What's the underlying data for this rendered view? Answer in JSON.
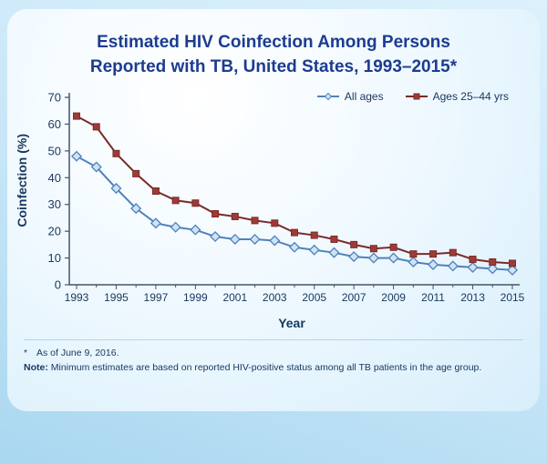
{
  "slide": {
    "title_line1": "Estimated HIV Coinfection Among Persons",
    "title_line2": "Reported with TB, United States, 1993–2015*",
    "footnote_star": "*",
    "footnote1": "As of June 9, 2016.",
    "note_label": "Note:",
    "note_text": " Minimum estimates are based on reported HIV-positive status among all TB patients in the age group."
  },
  "chart_data": {
    "type": "line",
    "title": "Estimated HIV Coinfection Among Persons Reported with TB, United States, 1993–2015",
    "x": [
      1993,
      1994,
      1995,
      1996,
      1997,
      1998,
      1999,
      2000,
      2001,
      2002,
      2003,
      2004,
      2005,
      2006,
      2007,
      2008,
      2009,
      2010,
      2011,
      2012,
      2013,
      2014,
      2015
    ],
    "series": [
      {
        "name": "All ages",
        "marker": "diamond",
        "color": "#4f81bd",
        "marker_fill": "#cfe3f3",
        "values": [
          48,
          44,
          36,
          28.5,
          23,
          21.5,
          20.5,
          18,
          17,
          17,
          16.5,
          14,
          13,
          12,
          10.5,
          10,
          10,
          8.5,
          7.5,
          7,
          6.5,
          6,
          5.5
        ]
      },
      {
        "name": "Ages 25–44 yrs",
        "marker": "square",
        "color": "#7a2b29",
        "marker_fill": "#9e3b38",
        "values": [
          63,
          59,
          49,
          41.5,
          35,
          31.5,
          30.5,
          26.5,
          25.5,
          24,
          23,
          19.5,
          18.5,
          17,
          15,
          13.5,
          14,
          11.5,
          11.5,
          12,
          9.5,
          8.5,
          8
        ]
      }
    ],
    "xlabel": "Year",
    "ylabel": "Coinfection (%)",
    "ylim": [
      0,
      70
    ],
    "ytick_step": 10,
    "xtick_labels": [
      "1993",
      "1995",
      "1997",
      "1999",
      "2001",
      "2003",
      "2005",
      "2007",
      "2009",
      "2011",
      "2013",
      "2015"
    ],
    "legend_position": "top-right",
    "grid": false,
    "axis_color": "#44546a",
    "label_color": "#17375e"
  }
}
